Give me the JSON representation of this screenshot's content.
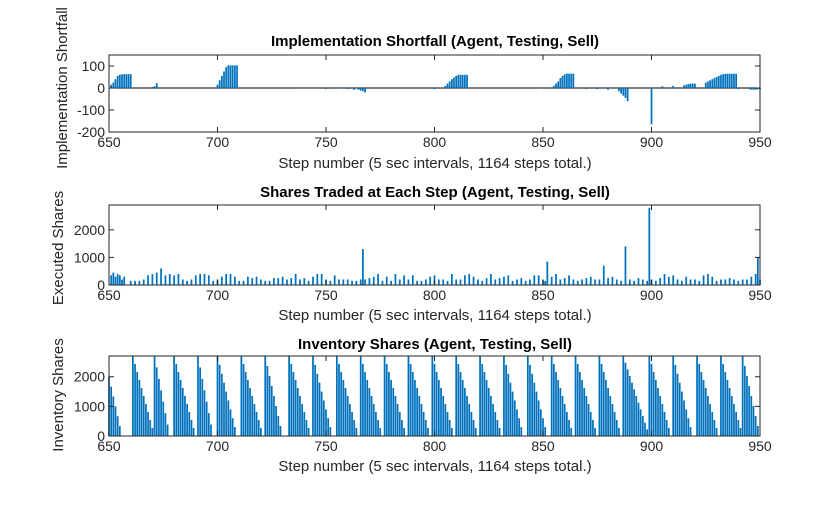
{
  "figure": {
    "background": "#ffffff",
    "bar_color": "#0072bd",
    "axis_color": "#262626"
  },
  "chart_data": [
    {
      "type": "bar",
      "title": "Implementation Shortfall (Agent, Testing, Sell)",
      "xlabel": "Step number (5 sec intervals, 1164 steps total.)",
      "ylabel": "Implementation Shortfall",
      "xlim": [
        650,
        950
      ],
      "ylim": [
        -200,
        150
      ],
      "xticks": [
        650,
        700,
        750,
        800,
        850,
        900,
        950
      ],
      "yticks": [
        -200,
        -100,
        0,
        100
      ],
      "x": [
        651,
        652,
        653,
        654,
        655,
        656,
        657,
        658,
        659,
        660,
        670,
        671,
        672,
        700,
        701,
        702,
        703,
        704,
        705,
        706,
        707,
        708,
        709,
        740,
        745,
        750,
        755,
        760,
        763,
        765,
        766,
        767,
        768,
        800,
        805,
        806,
        807,
        808,
        809,
        810,
        811,
        812,
        813,
        814,
        815,
        850,
        855,
        856,
        857,
        858,
        859,
        860,
        861,
        862,
        863,
        864,
        870,
        875,
        880,
        885,
        886,
        887,
        888,
        889,
        900,
        905,
        910,
        915,
        916,
        917,
        918,
        919,
        920,
        925,
        926,
        927,
        928,
        929,
        930,
        931,
        932,
        933,
        934,
        935,
        936,
        937,
        938,
        939,
        940,
        945,
        946,
        947,
        948,
        949,
        950
      ],
      "values": [
        15,
        25,
        40,
        55,
        60,
        62,
        63,
        63,
        63,
        63,
        5,
        8,
        22,
        15,
        35,
        55,
        75,
        95,
        103,
        103,
        103,
        103,
        103,
        -3,
        -3,
        -5,
        -3,
        -5,
        -8,
        -8,
        -12,
        -15,
        -20,
        -5,
        10,
        20,
        30,
        40,
        48,
        55,
        60,
        60,
        60,
        60,
        60,
        -3,
        10,
        20,
        30,
        45,
        55,
        62,
        65,
        65,
        65,
        65,
        -5,
        -5,
        -8,
        -15,
        -25,
        -35,
        -45,
        -60,
        -165,
        8,
        10,
        12,
        15,
        18,
        20,
        20,
        20,
        25,
        30,
        35,
        40,
        45,
        50,
        55,
        60,
        63,
        65,
        65,
        65,
        65,
        65,
        65,
        -5,
        -5,
        -8,
        -8,
        -8,
        -6,
        -5
      ]
    },
    {
      "type": "bar",
      "title": "Shares Traded at Each Step (Agent, Testing, Sell)",
      "xlabel": "Step number (5 sec intervals, 1164 steps total.)",
      "ylabel": "Executed Shares",
      "xlim": [
        650,
        950
      ],
      "ylim": [
        0,
        2900
      ],
      "xticks": [
        650,
        700,
        750,
        800,
        850,
        900,
        950
      ],
      "yticks": [
        0,
        1000,
        2000
      ],
      "x": [
        651,
        652,
        653,
        654,
        655,
        656,
        657,
        660,
        662,
        664,
        666,
        668,
        670,
        672,
        674,
        676,
        678,
        680,
        682,
        684,
        686,
        688,
        690,
        692,
        694,
        696,
        698,
        700,
        702,
        704,
        706,
        708,
        710,
        712,
        714,
        716,
        718,
        720,
        722,
        724,
        726,
        728,
        730,
        732,
        734,
        736,
        738,
        740,
        742,
        744,
        746,
        748,
        750,
        752,
        754,
        756,
        758,
        760,
        762,
        764,
        766,
        767,
        768,
        770,
        772,
        774,
        776,
        778,
        780,
        782,
        784,
        786,
        788,
        790,
        792,
        794,
        796,
        798,
        800,
        802,
        804,
        806,
        808,
        810,
        812,
        814,
        816,
        818,
        820,
        822,
        824,
        826,
        828,
        830,
        832,
        834,
        836,
        838,
        840,
        842,
        844,
        846,
        848,
        850,
        851,
        852,
        854,
        856,
        858,
        860,
        862,
        864,
        866,
        868,
        870,
        872,
        874,
        876,
        878,
        880,
        882,
        884,
        886,
        888,
        890,
        892,
        894,
        896,
        898,
        899,
        900,
        902,
        904,
        906,
        908,
        910,
        912,
        914,
        916,
        918,
        920,
        922,
        924,
        926,
        928,
        930,
        932,
        934,
        936,
        938,
        940,
        942,
        944,
        946,
        948,
        949,
        950
      ],
      "values": [
        350,
        450,
        300,
        400,
        350,
        200,
        300,
        150,
        150,
        150,
        200,
        350,
        400,
        450,
        600,
        350,
        400,
        350,
        400,
        200,
        150,
        200,
        350,
        400,
        400,
        350,
        150,
        200,
        300,
        400,
        400,
        300,
        150,
        150,
        300,
        250,
        300,
        200,
        150,
        150,
        250,
        250,
        300,
        200,
        250,
        400,
        200,
        250,
        150,
        300,
        400,
        400,
        200,
        150,
        350,
        200,
        200,
        200,
        150,
        150,
        200,
        1300,
        200,
        250,
        300,
        400,
        150,
        300,
        150,
        400,
        200,
        350,
        200,
        350,
        150,
        150,
        200,
        300,
        350,
        200,
        200,
        150,
        400,
        200,
        200,
        350,
        400,
        300,
        200,
        150,
        250,
        400,
        200,
        250,
        300,
        350,
        150,
        200,
        250,
        150,
        200,
        350,
        350,
        200,
        150,
        850,
        300,
        400,
        200,
        250,
        350,
        200,
        150,
        200,
        250,
        300,
        200,
        200,
        700,
        250,
        300,
        200,
        150,
        1400,
        200,
        150,
        250,
        200,
        150,
        2800,
        200,
        150,
        250,
        400,
        300,
        350,
        200,
        150,
        300,
        200,
        200,
        150,
        350,
        400,
        300,
        150,
        200,
        200,
        250,
        200,
        150,
        200,
        200,
        300,
        400,
        1000,
        200
      ]
    },
    {
      "type": "bar",
      "title": "Inventory Shares (Agent, Testing, Sell)",
      "xlabel": "Step number (5 sec intervals, 1164 steps total.)",
      "ylabel": "Inventory Shares",
      "xlim": [
        650,
        950
      ],
      "ylim": [
        0,
        2700
      ],
      "xticks": [
        650,
        700,
        750,
        800,
        850,
        900,
        950
      ],
      "yticks": [
        0,
        1000,
        2000
      ],
      "cycles": [
        {
          "start": 650,
          "len": 6,
          "peak": 2000
        },
        {
          "start": 661,
          "len": 10,
          "peak": 2700
        },
        {
          "start": 671,
          "len": 7,
          "peak": 2700
        },
        {
          "start": 680,
          "len": 10,
          "peak": 2700
        },
        {
          "start": 691,
          "len": 7,
          "peak": 2700
        },
        {
          "start": 700,
          "len": 9,
          "peak": 2700
        },
        {
          "start": 711,
          "len": 10,
          "peak": 2700
        },
        {
          "start": 722,
          "len": 8,
          "peak": 2700
        },
        {
          "start": 733,
          "len": 10,
          "peak": 2700
        },
        {
          "start": 744,
          "len": 9,
          "peak": 2700
        },
        {
          "start": 755,
          "len": 10,
          "peak": 2700
        },
        {
          "start": 766,
          "len": 10,
          "peak": 2700
        },
        {
          "start": 777,
          "len": 10,
          "peak": 2700
        },
        {
          "start": 788,
          "len": 10,
          "peak": 2700
        },
        {
          "start": 799,
          "len": 10,
          "peak": 2700
        },
        {
          "start": 810,
          "len": 10,
          "peak": 2700
        },
        {
          "start": 821,
          "len": 10,
          "peak": 2700
        },
        {
          "start": 832,
          "len": 9,
          "peak": 2700
        },
        {
          "start": 843,
          "len": 9,
          "peak": 2700
        },
        {
          "start": 854,
          "len": 10,
          "peak": 2700
        },
        {
          "start": 865,
          "len": 10,
          "peak": 2700
        },
        {
          "start": 876,
          "len": 10,
          "peak": 2700
        },
        {
          "start": 887,
          "len": 12,
          "peak": 2700
        },
        {
          "start": 899,
          "len": 10,
          "peak": 2700
        },
        {
          "start": 910,
          "len": 9,
          "peak": 2700
        },
        {
          "start": 921,
          "len": 10,
          "peak": 2700
        },
        {
          "start": 932,
          "len": 10,
          "peak": 2700
        },
        {
          "start": 942,
          "len": 8,
          "peak": 2700
        }
      ]
    }
  ]
}
